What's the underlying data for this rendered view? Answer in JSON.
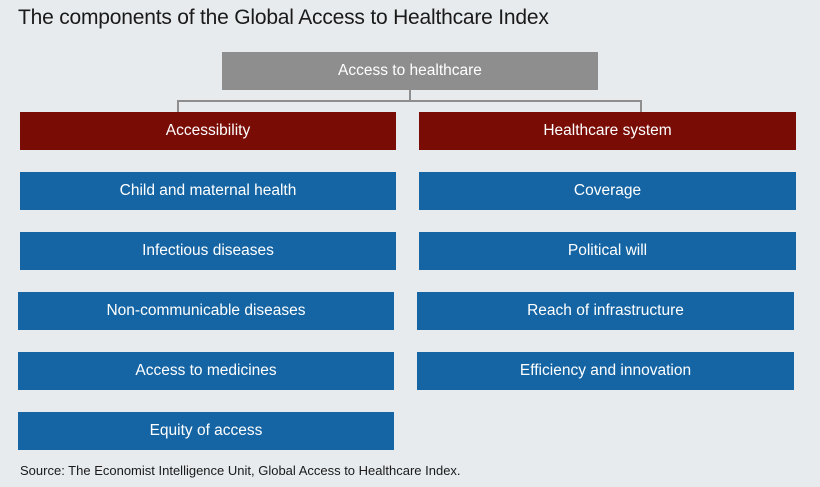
{
  "title": "The components of the Global Access to Healthcare Index",
  "root": "Access to healthcare",
  "branches": [
    {
      "label": "Accessibility",
      "items": [
        "Child and maternal health",
        "Infectious diseases",
        "Non-communicable diseases",
        "Access to medicines",
        "Equity of access"
      ]
    },
    {
      "label": "Healthcare system",
      "items": [
        "Coverage",
        "Political will",
        "Reach of infrastructure",
        "Efficiency and innovation"
      ]
    }
  ],
  "source": "Source: The Economist Intelligence Unit, Global Access to Healthcare Index.",
  "colors": {
    "background": "#e7ebee",
    "root": "#8e8e8e",
    "category": "#790c05",
    "item": "#1565a4",
    "connector": "#8e8e8e"
  }
}
